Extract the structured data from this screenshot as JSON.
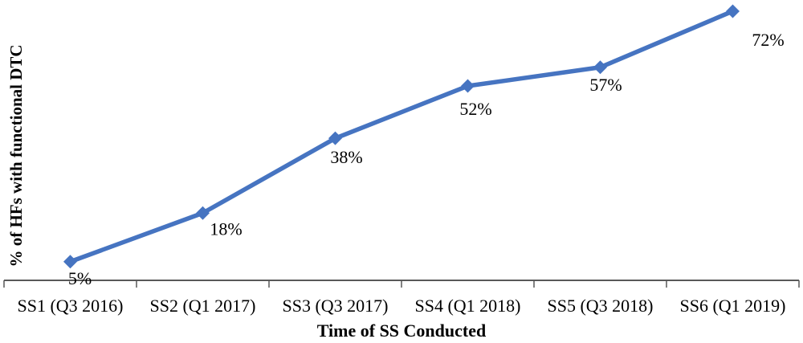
{
  "chart_data": {
    "type": "line",
    "categories": [
      "SS1 (Q3 2016)",
      "SS2 (Q1 2017)",
      "SS3 (Q3 2017)",
      "SS4 (Q1 2018)",
      "SS5 (Q3 2018)",
      "SS6 (Q1 2019)"
    ],
    "series": [
      {
        "name": "% of HFs with functional DTC",
        "values": [
          5,
          18,
          38,
          52,
          57,
          72
        ]
      }
    ],
    "data_labels": [
      "5%",
      "18%",
      "38%",
      "52%",
      "57%",
      "72%"
    ],
    "title": "",
    "xlabel": "Time of SS Conducted",
    "ylabel": "% of HFs with functional DTC",
    "ylim": [
      0,
      75
    ],
    "grid": false,
    "legend": "none",
    "marker": "diamond",
    "colors": {
      "line": "#4674C1",
      "marker": "#4674C1",
      "axis": "#595959",
      "text": "#000000"
    }
  }
}
